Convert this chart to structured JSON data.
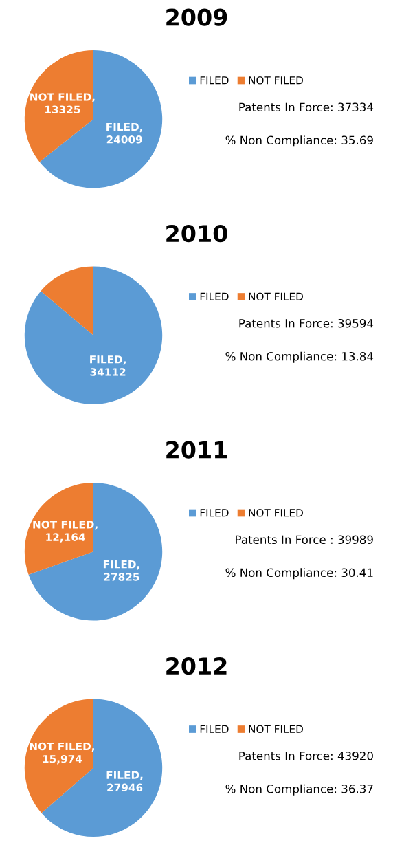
{
  "chart_data": [
    {
      "type": "pie",
      "title": "2009",
      "categories": [
        "FILED",
        "NOT FILED"
      ],
      "values": [
        24009,
        13325
      ],
      "colors": [
        "#5b9bd5",
        "#ed7d31"
      ],
      "value_labels": [
        "FILED, 24009",
        "NOT FILED, 13325"
      ],
      "legend": "right",
      "annotations": [
        "Patents In Force: 37334",
        "% Non Compliance: 35.69"
      ]
    },
    {
      "type": "pie",
      "title": "2010",
      "categories": [
        "FILED",
        "NOT FILED"
      ],
      "values": [
        34112,
        5482
      ],
      "colors": [
        "#5b9bd5",
        "#ed7d31"
      ],
      "value_labels": [
        "FILED, 34112",
        null
      ],
      "legend": "right",
      "annotations": [
        "Patents In Force: 39594",
        "% Non Compliance: 13.84"
      ]
    },
    {
      "type": "pie",
      "title": "2011",
      "categories": [
        "FILED",
        "NOT FILED"
      ],
      "values": [
        27825,
        12164
      ],
      "colors": [
        "#5b9bd5",
        "#ed7d31"
      ],
      "value_labels": [
        "FILED, 27825",
        "NOT FILED, 12,164"
      ],
      "legend": "right",
      "annotations": [
        "Patents In Force : 39989",
        "% Non Compliance: 30.41"
      ]
    },
    {
      "type": "pie",
      "title": "2012",
      "categories": [
        "FILED",
        "NOT FILED"
      ],
      "values": [
        27946,
        15974
      ],
      "colors": [
        "#5b9bd5",
        "#ed7d31"
      ],
      "value_labels": [
        "FILED, 27946",
        "NOT FILED, 15,974"
      ],
      "legend": "right",
      "annotations": [
        "Patents In Force: 43920",
        "% Non Compliance: 36.37"
      ]
    }
  ]
}
